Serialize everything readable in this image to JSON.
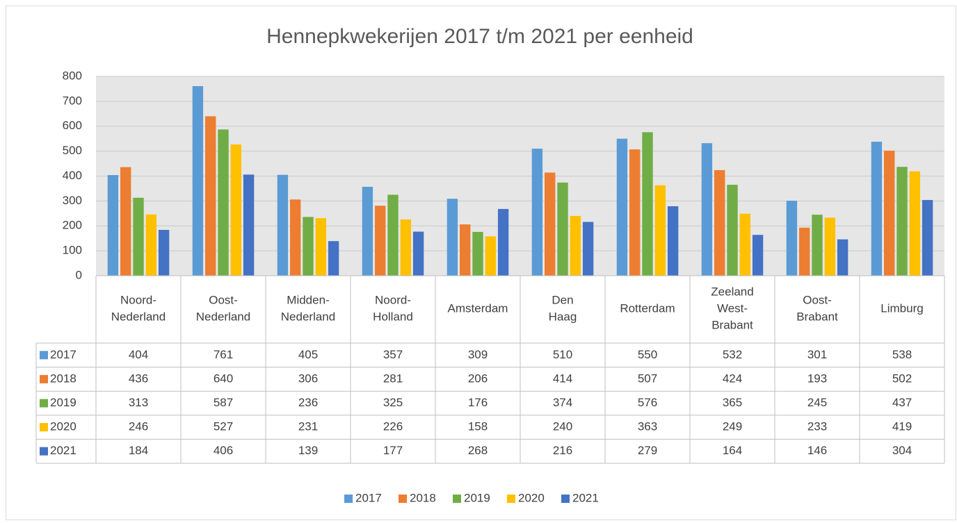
{
  "chart_data": {
    "type": "bar",
    "title": "Hennepkwekerijen 2017 t/m 2021 per eenheid",
    "categories": [
      "Noord-Nederland",
      "Oost-Nederland",
      "Midden-Nederland",
      "Noord-Holland",
      "Amsterdam",
      "Den Haag",
      "Rotterdam",
      "Zeeland West-Brabant",
      "Oost-Brabant",
      "Limburg"
    ],
    "series": [
      {
        "name": "2017",
        "color": "#5b9bd5",
        "values": [
          404,
          761,
          405,
          357,
          309,
          510,
          550,
          532,
          301,
          538
        ]
      },
      {
        "name": "2018",
        "color": "#ed7d31",
        "values": [
          436,
          640,
          306,
          281,
          206,
          414,
          507,
          424,
          193,
          502
        ]
      },
      {
        "name": "2019",
        "color": "#70ad47",
        "values": [
          313,
          587,
          236,
          325,
          176,
          374,
          576,
          365,
          245,
          437
        ]
      },
      {
        "name": "2020",
        "color": "#ffc000",
        "values": [
          246,
          527,
          231,
          226,
          158,
          240,
          363,
          249,
          233,
          419
        ]
      },
      {
        "name": "2021",
        "color": "#4472c4",
        "values": [
          184,
          406,
          139,
          177,
          268,
          216,
          279,
          164,
          146,
          304
        ]
      }
    ],
    "ylim": [
      0,
      800
    ],
    "yticks": [
      0,
      100,
      200,
      300,
      400,
      500,
      600,
      700,
      800
    ],
    "grid": true,
    "data_table": true,
    "legend": "bottom"
  }
}
